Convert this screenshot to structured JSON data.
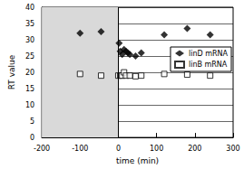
{
  "chart_data": {
    "type": "scatter",
    "x_label": "time (min)",
    "y_label": "RT value",
    "xlim": [
      -200,
      300
    ],
    "xticks": [
      -200,
      -100,
      0,
      100,
      200,
      300
    ],
    "ylim": [
      0,
      40
    ],
    "yticks": [
      0,
      5,
      10,
      15,
      20,
      25,
      30,
      35,
      40
    ],
    "grid": true,
    "legend": "right",
    "shaded_x": [
      -200,
      0
    ],
    "series": [
      {
        "name": "linD mRNA",
        "color": "#000000",
        "marker": "diamond",
        "x": [
          -100,
          -45,
          2,
          5,
          10,
          15,
          20,
          25,
          30,
          45,
          60,
          120,
          180,
          240
        ],
        "values": [
          32,
          32.5,
          29,
          26.5,
          25.5,
          27,
          26.5,
          26,
          25.5,
          25,
          26,
          31.5,
          33.5,
          31.5
        ]
      },
      {
        "name": "linB mRNA",
        "color": "#000000",
        "marker": "square-open",
        "x": [
          -100,
          -45,
          0,
          5,
          10,
          15,
          20,
          30,
          45,
          60,
          120,
          180,
          240
        ],
        "values": [
          19.5,
          19,
          19,
          19,
          19,
          20,
          19,
          19,
          18.8,
          19,
          19.5,
          19.3,
          19
        ]
      }
    ]
  }
}
